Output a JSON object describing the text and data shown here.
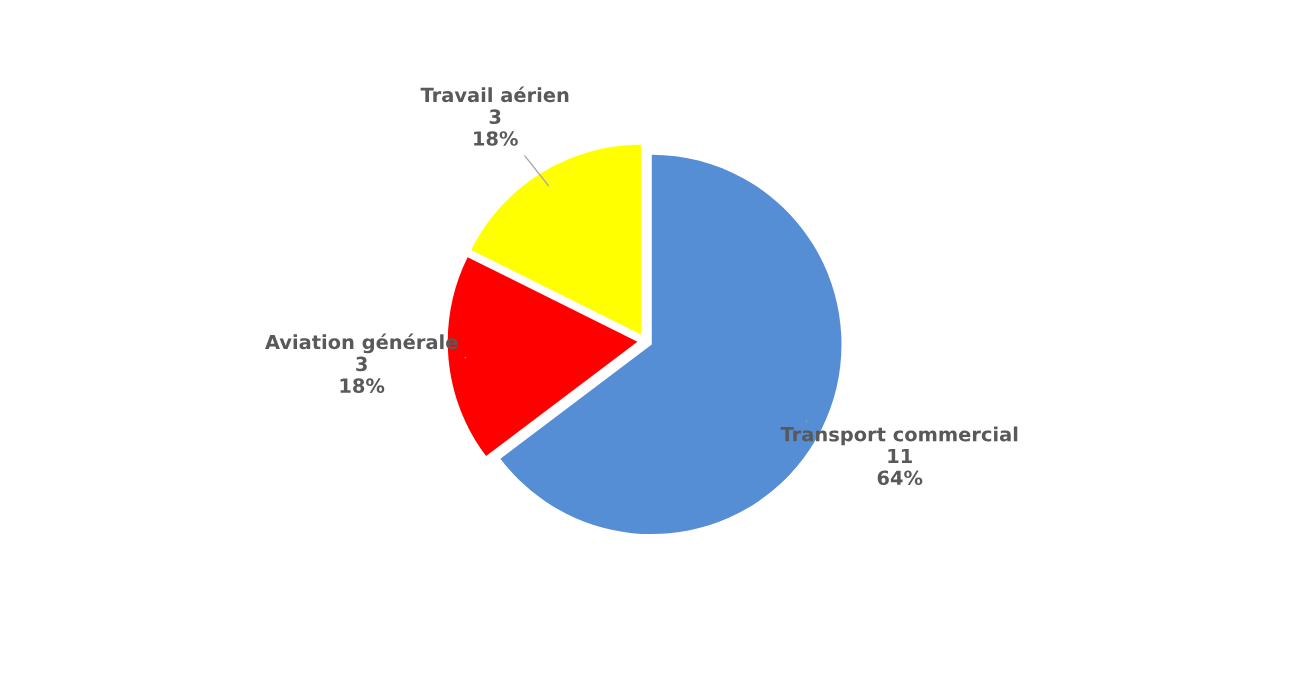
{
  "chart_data": {
    "type": "pie",
    "categories": [
      "Transport commercial",
      "Aviation générale",
      "Travail aérien"
    ],
    "values": [
      11,
      3,
      3
    ],
    "colors": [
      "#558ed5",
      "#ff0000",
      "#ffff00"
    ],
    "value_labels": [
      "11\n64%",
      "3\n18%",
      "3\n18%"
    ],
    "legend": false
  }
}
